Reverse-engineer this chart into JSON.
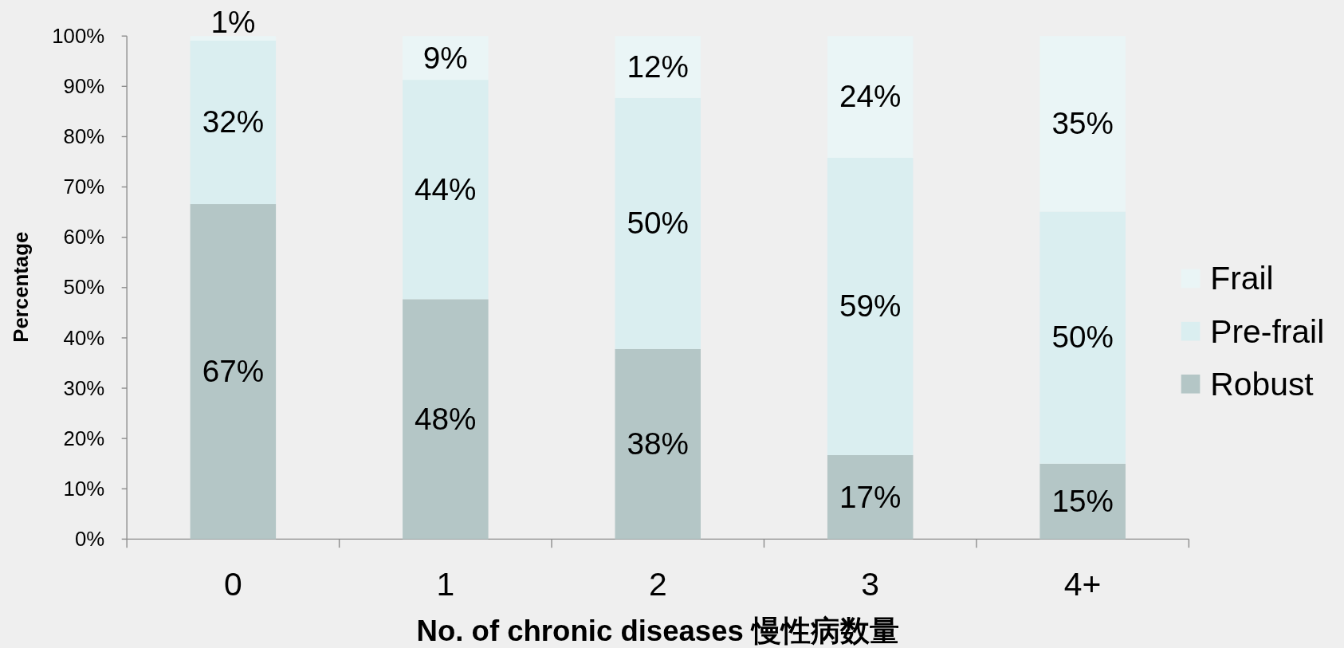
{
  "chart_data": {
    "type": "bar",
    "stacked": true,
    "xlabel": "No. of chronic diseases 慢性病数量",
    "ylabel": "Percentage",
    "categories": [
      "0",
      "1",
      "2",
      "3",
      "4+"
    ],
    "series": [
      {
        "name": "Robust",
        "color": "#b4c6c6",
        "values": [
          66.6,
          47.7,
          37.8,
          16.7,
          15.0
        ],
        "value_labels": [
          "67%",
          "48%",
          "38%",
          "17%",
          "15%"
        ]
      },
      {
        "name": "Pre-frail",
        "color": "#daeef0",
        "values": [
          32.5,
          43.6,
          49.9,
          59.1,
          50.1
        ],
        "value_labels": [
          "32%",
          "44%",
          "50%",
          "59%",
          "50%"
        ]
      },
      {
        "name": "Frail",
        "color": "#eaf5f6",
        "values": [
          0.9,
          8.7,
          12.3,
          24.2,
          34.9
        ],
        "value_labels": [
          "1%",
          "9%",
          "12%",
          "24%",
          "35%"
        ]
      }
    ],
    "ylim": [
      0,
      100
    ],
    "yticks": [
      {
        "value": 0,
        "label": "0%"
      },
      {
        "value": 10,
        "label": "10%"
      },
      {
        "value": 20,
        "label": "20%"
      },
      {
        "value": 30,
        "label": "30%"
      },
      {
        "value": 40,
        "label": "40%"
      },
      {
        "value": 50,
        "label": "50%"
      },
      {
        "value": 60,
        "label": "60%"
      },
      {
        "value": 70,
        "label": "70%"
      },
      {
        "value": 80,
        "label": "80%"
      },
      {
        "value": 90,
        "label": "90%"
      },
      {
        "value": 100,
        "label": "100%"
      }
    ],
    "legend": "right"
  }
}
